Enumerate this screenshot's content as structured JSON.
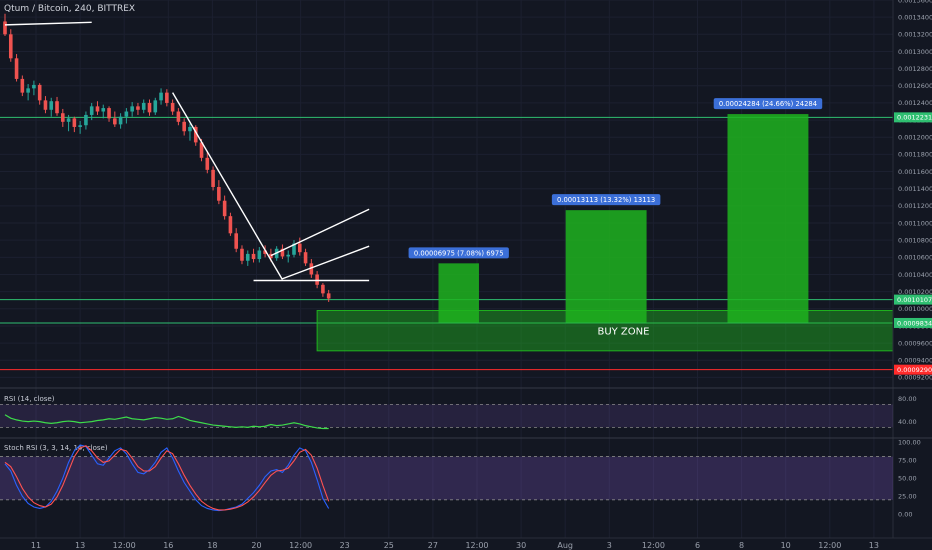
{
  "chart_data": {
    "type": "candlestick",
    "title": "Qtum / Bitcoin, 240, BITTREX",
    "colors": {
      "up": "#26a69a",
      "down": "#ef5350",
      "zone": "#1fb31f",
      "rsi": "#3ddc4a",
      "stoch_k": "#2962ff",
      "stoch_d": "#ff5252",
      "hline_green": "#2fbf71",
      "hline_red": "#ff2b2b"
    },
    "price_axis": {
      "ylim": [
        0.00091,
        0.00136
      ],
      "ticks": [
        "0.00136000",
        "0.00134000",
        "0.00132000",
        "0.00130000",
        "0.00128000",
        "0.00126000",
        "0.00124000",
        "0.00122000",
        "0.00120000",
        "0.00118000",
        "0.00116000",
        "0.00114000",
        "0.00112000",
        "0.00110000",
        "0.00108000",
        "0.00106000",
        "0.00104000",
        "0.00102000",
        "0.00100000",
        "0.00098000",
        "0.00096000",
        "0.00094000",
        "0.00092000"
      ],
      "labels": [
        {
          "text": "0.00122319",
          "value": 0.00122319,
          "color": "#2fbf71"
        },
        {
          "text": "0.00101073",
          "value": 0.00101073,
          "color": "#2fbf71"
        },
        {
          "text": "0.00098349",
          "value": 0.00098349,
          "color": "#2fbf71"
        },
        {
          "text": "0.00092903",
          "value": 0.00092903,
          "color": "#ff2b2b"
        }
      ]
    },
    "x_axis": {
      "labels": [
        "11",
        "13",
        "12:00",
        "16",
        "18",
        "20",
        "12:00",
        "23",
        "25",
        "27",
        "12:00",
        "30",
        "Aug",
        "3",
        "12:00",
        "6",
        "8",
        "10",
        "12:00",
        "13"
      ]
    },
    "candles": [
      {
        "o": 0.001335,
        "h": 0.001344,
        "l": 0.001318,
        "c": 0.00132
      },
      {
        "o": 0.00132,
        "h": 0.001326,
        "l": 0.001288,
        "c": 0.001292
      },
      {
        "o": 0.001292,
        "h": 0.001297,
        "l": 0.001265,
        "c": 0.001268
      },
      {
        "o": 0.001268,
        "h": 0.001272,
        "l": 0.001248,
        "c": 0.001252
      },
      {
        "o": 0.001252,
        "h": 0.001262,
        "l": 0.001243,
        "c": 0.001257
      },
      {
        "o": 0.001257,
        "h": 0.001266,
        "l": 0.001249,
        "c": 0.001261
      },
      {
        "o": 0.001261,
        "h": 0.001263,
        "l": 0.001238,
        "c": 0.001243
      },
      {
        "o": 0.001243,
        "h": 0.001248,
        "l": 0.001228,
        "c": 0.001232
      },
      {
        "o": 0.001232,
        "h": 0.001246,
        "l": 0.001224,
        "c": 0.001242
      },
      {
        "o": 0.001242,
        "h": 0.001247,
        "l": 0.001225,
        "c": 0.001228
      },
      {
        "o": 0.001228,
        "h": 0.001233,
        "l": 0.001212,
        "c": 0.001218
      },
      {
        "o": 0.001218,
        "h": 0.001226,
        "l": 0.001207,
        "c": 0.001222
      },
      {
        "o": 0.001222,
        "h": 0.001224,
        "l": 0.001206,
        "c": 0.001212
      },
      {
        "o": 0.001212,
        "h": 0.001219,
        "l": 0.001204,
        "c": 0.001214
      },
      {
        "o": 0.001214,
        "h": 0.00123,
        "l": 0.001209,
        "c": 0.001226
      },
      {
        "o": 0.001226,
        "h": 0.00124,
        "l": 0.00122,
        "c": 0.001236
      },
      {
        "o": 0.001236,
        "h": 0.001242,
        "l": 0.001226,
        "c": 0.00123
      },
      {
        "o": 0.00123,
        "h": 0.001238,
        "l": 0.001222,
        "c": 0.001234
      },
      {
        "o": 0.001234,
        "h": 0.001236,
        "l": 0.001218,
        "c": 0.001222
      },
      {
        "o": 0.001222,
        "h": 0.00123,
        "l": 0.001212,
        "c": 0.001215
      },
      {
        "o": 0.001215,
        "h": 0.001228,
        "l": 0.00121,
        "c": 0.001224
      },
      {
        "o": 0.001224,
        "h": 0.001234,
        "l": 0.001216,
        "c": 0.00123
      },
      {
        "o": 0.00123,
        "h": 0.001241,
        "l": 0.001224,
        "c": 0.001236
      },
      {
        "o": 0.001236,
        "h": 0.00124,
        "l": 0.001226,
        "c": 0.001232
      },
      {
        "o": 0.001232,
        "h": 0.001244,
        "l": 0.001228,
        "c": 0.00124
      },
      {
        "o": 0.00124,
        "h": 0.001244,
        "l": 0.001225,
        "c": 0.001229
      },
      {
        "o": 0.001229,
        "h": 0.001246,
        "l": 0.001226,
        "c": 0.001243
      },
      {
        "o": 0.001243,
        "h": 0.001257,
        "l": 0.001238,
        "c": 0.001252
      },
      {
        "o": 0.001252,
        "h": 0.001256,
        "l": 0.001236,
        "c": 0.00124
      },
      {
        "o": 0.00124,
        "h": 0.001244,
        "l": 0.001226,
        "c": 0.00123
      },
      {
        "o": 0.00123,
        "h": 0.001234,
        "l": 0.001214,
        "c": 0.001218
      },
      {
        "o": 0.001218,
        "h": 0.001222,
        "l": 0.001202,
        "c": 0.001207
      },
      {
        "o": 0.001207,
        "h": 0.001216,
        "l": 0.001196,
        "c": 0.001212
      },
      {
        "o": 0.001212,
        "h": 0.001214,
        "l": 0.00119,
        "c": 0.001194
      },
      {
        "o": 0.001194,
        "h": 0.001198,
        "l": 0.001172,
        "c": 0.001176
      },
      {
        "o": 0.001176,
        "h": 0.001184,
        "l": 0.001158,
        "c": 0.001162
      },
      {
        "o": 0.001162,
        "h": 0.001166,
        "l": 0.001138,
        "c": 0.001142
      },
      {
        "o": 0.001142,
        "h": 0.00115,
        "l": 0.001122,
        "c": 0.001126
      },
      {
        "o": 0.001126,
        "h": 0.001132,
        "l": 0.001104,
        "c": 0.001108
      },
      {
        "o": 0.001108,
        "h": 0.001112,
        "l": 0.001085,
        "c": 0.001088
      },
      {
        "o": 0.001088,
        "h": 0.001094,
        "l": 0.001066,
        "c": 0.00107
      },
      {
        "o": 0.00107,
        "h": 0.001074,
        "l": 0.001052,
        "c": 0.001056
      },
      {
        "o": 0.001056,
        "h": 0.001068,
        "l": 0.00105,
        "c": 0.001064
      },
      {
        "o": 0.001064,
        "h": 0.00107,
        "l": 0.001054,
        "c": 0.001058
      },
      {
        "o": 0.001058,
        "h": 0.001072,
        "l": 0.001054,
        "c": 0.001068
      },
      {
        "o": 0.001068,
        "h": 0.001074,
        "l": 0.00106,
        "c": 0.001064
      },
      {
        "o": 0.001064,
        "h": 0.00107,
        "l": 0.001055,
        "c": 0.001059
      },
      {
        "o": 0.001059,
        "h": 0.001073,
        "l": 0.001056,
        "c": 0.00107
      },
      {
        "o": 0.00107,
        "h": 0.001075,
        "l": 0.001058,
        "c": 0.001061
      },
      {
        "o": 0.001061,
        "h": 0.001068,
        "l": 0.001054,
        "c": 0.001063
      },
      {
        "o": 0.001063,
        "h": 0.00108,
        "l": 0.00106,
        "c": 0.001076
      },
      {
        "o": 0.001076,
        "h": 0.001083,
        "l": 0.001062,
        "c": 0.001066
      },
      {
        "o": 0.001066,
        "h": 0.00107,
        "l": 0.00105,
        "c": 0.001053
      },
      {
        "o": 0.001053,
        "h": 0.001058,
        "l": 0.001036,
        "c": 0.00104
      },
      {
        "o": 0.00104,
        "h": 0.001044,
        "l": 0.001024,
        "c": 0.001028
      },
      {
        "o": 0.001028,
        "h": 0.00103,
        "l": 0.001014,
        "c": 0.001018
      },
      {
        "o": 0.001018,
        "h": 0.001022,
        "l": 0.001008,
        "c": 0.001012
      }
    ],
    "trendlines": [
      {
        "p1": [
          0,
          0.001331
        ],
        "p2": [
          15,
          0.001334
        ]
      },
      {
        "p1": [
          29,
          0.001252
        ],
        "p2": [
          48,
          0.001034
        ]
      },
      {
        "p1": [
          46,
          0.001062
        ],
        "p2": [
          63,
          0.001116
        ]
      },
      {
        "p1": [
          48,
          0.001035
        ],
        "p2": [
          63,
          0.001073
        ]
      },
      {
        "p1": [
          43,
          0.001033
        ],
        "p2": [
          63,
          0.001033
        ]
      }
    ],
    "hlines": [
      {
        "value": 0.00122319,
        "color": "#2fbf71"
      },
      {
        "value": 0.00101073,
        "color": "#2fbf71"
      },
      {
        "value": 0.00098349,
        "color": "#2fbf71"
      },
      {
        "value": 0.00092903,
        "color": "#ff2b2b"
      }
    ],
    "buy_zone": {
      "label": "BUY ZONE",
      "x_from": 54,
      "x_to": 160,
      "y_top": 0.000998,
      "y_bottom": 0.000951
    },
    "targets": [
      {
        "label": "0.00006975 (7.08%) 6975",
        "x_from": 75,
        "x_to": 82,
        "base": 0.000984,
        "top": 0.001053
      },
      {
        "label": "0.00013113 (13.32%) 13113",
        "x_from": 97,
        "x_to": 111,
        "base": 0.000984,
        "top": 0.001115
      },
      {
        "label": "0.00024284 (24.66%) 24284",
        "x_from": 125,
        "x_to": 139,
        "base": 0.000984,
        "top": 0.001227
      }
    ],
    "rsi": {
      "title": "RSI (14, close)",
      "ylim": [
        15,
        95
      ],
      "ticks": [
        "80.00",
        "40.00"
      ],
      "bands": [
        70,
        30
      ],
      "values": [
        52,
        46,
        43,
        41,
        40,
        41,
        40,
        38,
        37,
        38,
        40,
        41,
        40,
        38,
        39,
        40,
        42,
        43,
        45,
        44,
        46,
        48,
        45,
        44,
        43,
        45,
        47,
        46,
        44,
        45,
        49,
        46,
        42,
        40,
        38,
        36,
        34,
        33,
        32,
        31,
        30,
        31,
        30,
        32,
        31,
        32,
        35,
        33,
        34,
        36,
        38,
        36,
        33,
        31,
        29,
        28,
        28
      ]
    },
    "stoch": {
      "title": "Stoch RSI (3, 3, 14, 14, close)",
      "ylim": [
        -8,
        103
      ],
      "ticks": [
        "100.00",
        "75.00",
        "50.00",
        "25.00",
        "0.00"
      ],
      "bands": [
        80,
        20
      ],
      "k": [
        70,
        60,
        40,
        25,
        15,
        10,
        8,
        10,
        18,
        32,
        50,
        72,
        88,
        96,
        94,
        82,
        70,
        68,
        78,
        88,
        92,
        84,
        70,
        58,
        56,
        62,
        72,
        86,
        92,
        78,
        60,
        44,
        32,
        20,
        12,
        8,
        6,
        5,
        6,
        8,
        10,
        14,
        22,
        30,
        40,
        52,
        60,
        62,
        58,
        68,
        82,
        92,
        88,
        72,
        48,
        22,
        8
      ],
      "d": [
        72,
        66,
        52,
        36,
        24,
        16,
        12,
        10,
        14,
        24,
        40,
        60,
        80,
        92,
        95,
        88,
        78,
        72,
        74,
        82,
        90,
        88,
        78,
        66,
        60,
        60,
        66,
        78,
        88,
        84,
        70,
        54,
        40,
        28,
        18,
        12,
        8,
        6,
        6,
        7,
        9,
        12,
        17,
        24,
        33,
        44,
        54,
        60,
        61,
        64,
        74,
        86,
        90,
        82,
        64,
        40,
        18
      ]
    }
  }
}
